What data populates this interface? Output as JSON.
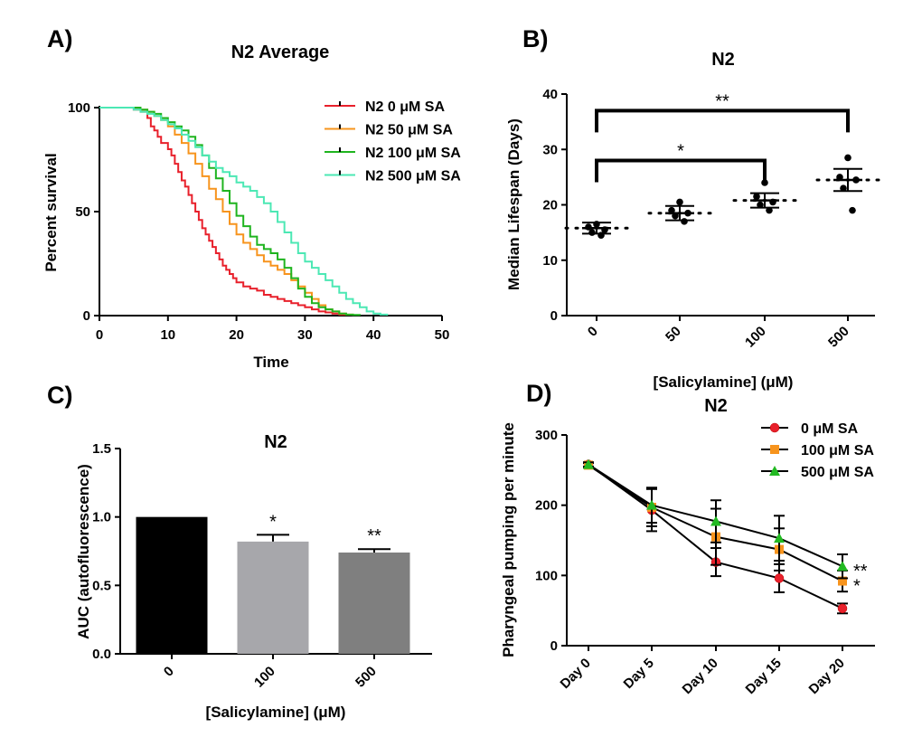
{
  "chart_data": [
    {
      "panel": "A)",
      "type": "line",
      "title": "N2  Average",
      "xlabel": "Time",
      "ylabel": "Percent survival",
      "xlim": [
        0,
        50
      ],
      "ylim": [
        0,
        100
      ],
      "xticks": [
        0,
        10,
        20,
        30,
        40,
        50
      ],
      "yticks": [
        0,
        50,
        100
      ],
      "legend": "top-right",
      "series": [
        {
          "name": "N2 0 μM SA",
          "color": "#e8202b",
          "x": [
            0,
            4,
            5,
            6,
            7,
            7.5,
            8,
            8.5,
            9,
            10,
            10.5,
            11,
            11.5,
            12,
            12.5,
            13,
            13.5,
            14,
            14.5,
            15,
            15.5,
            16,
            16.5,
            17,
            17.5,
            18,
            18.5,
            19,
            19.5,
            20,
            21,
            22,
            23,
            24,
            25,
            26,
            27,
            28,
            29,
            30,
            31,
            32,
            33,
            34,
            35,
            36
          ],
          "y": [
            100,
            100,
            99,
            98,
            95,
            91,
            89,
            86,
            83,
            80,
            77,
            73,
            69,
            65,
            62,
            58,
            54,
            50,
            46,
            42,
            39,
            36,
            33,
            30,
            27,
            24,
            22,
            20,
            18,
            16,
            14,
            13,
            12,
            10,
            9,
            8,
            7,
            6,
            5,
            4,
            3,
            2,
            1.5,
            1,
            0.5,
            0
          ]
        },
        {
          "name": "N2 50 μM SA",
          "color": "#f7941d",
          "x": [
            0,
            5,
            6,
            7,
            8,
            9,
            10,
            11,
            12,
            13,
            14,
            15,
            16,
            17,
            18,
            19,
            20,
            21,
            22,
            23,
            24,
            25,
            26,
            27,
            28,
            29,
            30,
            31,
            32,
            33,
            34,
            35,
            36,
            37
          ],
          "y": [
            100,
            100,
            99,
            98,
            96,
            94,
            91,
            87,
            83,
            78,
            73,
            67,
            61,
            56,
            50,
            44,
            39,
            35,
            32,
            29,
            26,
            24,
            22,
            20,
            17,
            14,
            11,
            8,
            5,
            3,
            2,
            1,
            0.5,
            0
          ]
        },
        {
          "name": "N2 100 μM SA",
          "color": "#1fb41f",
          "x": [
            0,
            5,
            6,
            7,
            8,
            9,
            10,
            11,
            12,
            13,
            14,
            15,
            16,
            17,
            18,
            19,
            20,
            21,
            22,
            23,
            24,
            25,
            26,
            27,
            28,
            29,
            30,
            31,
            32,
            33,
            34,
            35,
            36,
            37,
            38
          ],
          "y": [
            100,
            100,
            99,
            98,
            97,
            95,
            93,
            91,
            89,
            86,
            82,
            77,
            71,
            66,
            60,
            54,
            48,
            43,
            38,
            34,
            32,
            30,
            27,
            23,
            18,
            13,
            9,
            6,
            4,
            3,
            2,
            1,
            0.5,
            0.3,
            0
          ]
        },
        {
          "name": "N2 500 μM SA",
          "color": "#4ce8b4",
          "x": [
            0,
            4,
            5,
            6,
            7,
            8,
            9,
            10,
            11,
            12,
            13,
            14,
            15,
            16,
            17,
            18,
            19,
            20,
            21,
            22,
            23,
            24,
            25,
            26,
            27,
            28,
            29,
            30,
            31,
            32,
            33,
            34,
            35,
            36,
            37,
            38,
            39,
            40,
            41,
            42
          ],
          "y": [
            100,
            100,
            99,
            98,
            97,
            96,
            94,
            92,
            90,
            87,
            84,
            81,
            77,
            74,
            71,
            69,
            67,
            64,
            62,
            60,
            57,
            54,
            50,
            45,
            40,
            35,
            30,
            26,
            23,
            20,
            17,
            14,
            11,
            8,
            6,
            4,
            2,
            1,
            0.5,
            0
          ]
        }
      ]
    },
    {
      "panel": "B)",
      "type": "scatter",
      "title": "N2",
      "xlabel": "[Salicylamine] (μM)",
      "ylabel": "Median Lifespan (Days)",
      "categories": [
        "0",
        "50",
        "100",
        "500"
      ],
      "ylim": [
        0,
        40
      ],
      "yticks": [
        0,
        10,
        20,
        30,
        40
      ],
      "means": [
        15.8,
        18.5,
        20.8,
        24.5
      ],
      "errors": [
        1.0,
        1.3,
        1.3,
        2.0
      ],
      "points": [
        [
          16.5,
          16.0,
          15.5,
          15.0,
          14.5
        ],
        [
          20.5,
          19.0,
          18.5,
          18.0,
          17.0
        ],
        [
          24.0,
          21.5,
          20.5,
          20.0,
          19.0
        ],
        [
          28.5,
          25.0,
          24.5,
          23.0,
          19.0
        ]
      ],
      "brackets": [
        {
          "from": "0",
          "to": "100",
          "y": 28,
          "label": "*"
        },
        {
          "from": "0",
          "to": "500",
          "y": 37,
          "label": "**"
        }
      ]
    },
    {
      "panel": "C)",
      "type": "bar",
      "title": "N2",
      "xlabel": "[Salicylamine] (μM)",
      "ylabel": "AUC (autofluorescence)",
      "categories": [
        "0",
        "100",
        "500"
      ],
      "values": [
        1.0,
        0.82,
        0.74
      ],
      "errors": [
        0,
        0.05,
        0.025
      ],
      "colors": [
        "#000000",
        "#a7a7ab",
        "#7f7f7f"
      ],
      "annotations": [
        "",
        "*",
        "**"
      ],
      "ylim": [
        0,
        1.5
      ],
      "yticks": [
        "0.0",
        "0.5",
        "1.0",
        "1.5"
      ]
    },
    {
      "panel": "D)",
      "type": "line",
      "title": "N2",
      "xlabel": "",
      "ylabel": "Pharyngeal pumping per minute",
      "categories": [
        "Day 0",
        "Day 5",
        "Day 10",
        "Day 15",
        "Day 20"
      ],
      "ylim": [
        0,
        300
      ],
      "yticks": [
        0,
        100,
        200,
        300
      ],
      "legend": "top-right",
      "series": [
        {
          "name": "0 μM SA",
          "color": "#e8202b",
          "marker": "circle",
          "values": [
            258,
            193,
            119,
            96,
            53
          ],
          "errors": [
            3,
            30,
            20,
            20,
            7
          ],
          "annotation": ""
        },
        {
          "name": "100 μM SA",
          "color": "#f7941d",
          "marker": "square",
          "values": [
            257,
            197,
            155,
            137,
            92
          ],
          "errors": [
            3,
            27,
            40,
            30,
            15
          ],
          "annotation": "*"
        },
        {
          "name": "500 μM SA",
          "color": "#22b922",
          "marker": "triangle",
          "values": [
            258,
            200,
            177,
            153,
            113
          ],
          "errors": [
            3,
            25,
            30,
            32,
            17
          ],
          "annotation": "**"
        }
      ]
    }
  ]
}
